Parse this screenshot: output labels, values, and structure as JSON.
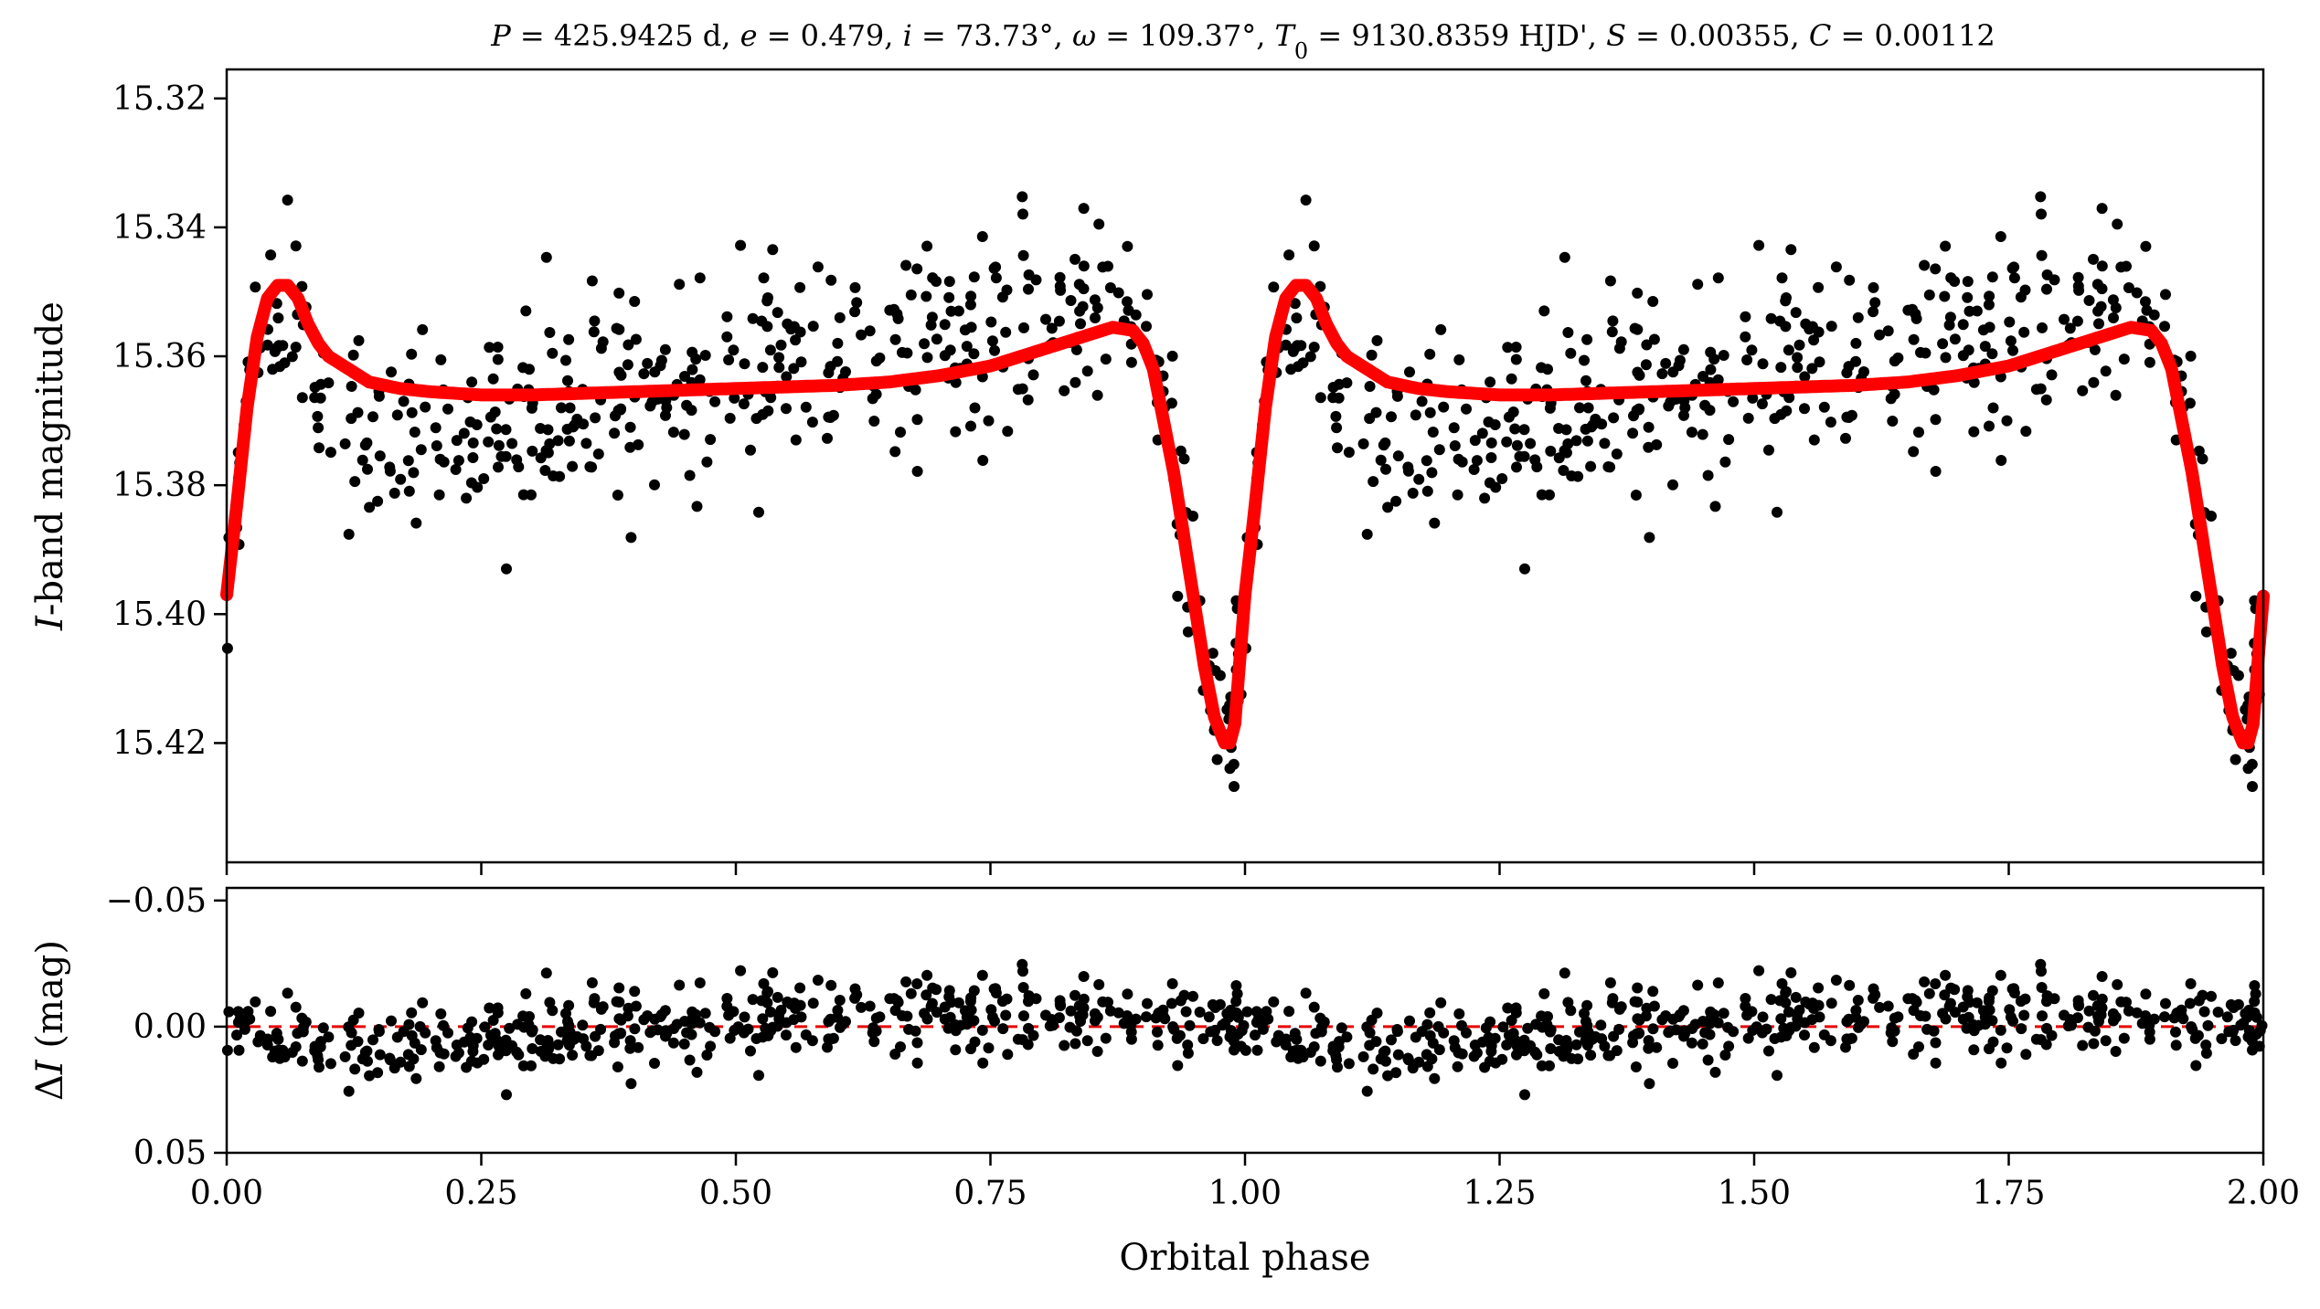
{
  "colors": {
    "points": "#000000",
    "model": "#ff0000",
    "zero_line": "#e60000",
    "axes": "#000000"
  },
  "chart_data": [
    {
      "type": "scatter",
      "panel": "light-curve",
      "title": "P = 425.9425 d, e = 0.479, i = 73.73°, ω = 109.37°, T0 = 9130.8359 HJD', S = 0.00355, C = 0.00112",
      "title_parts": [
        {
          "t": "P",
          "i": true
        },
        {
          "t": " = 425.9425 d, "
        },
        {
          "t": "e",
          "i": true
        },
        {
          "t": " = 0.479, "
        },
        {
          "t": "i",
          "i": true
        },
        {
          "t": " = 73.73°, "
        },
        {
          "t": "ω",
          "i": true
        },
        {
          "t": " = 109.37°, "
        },
        {
          "t": "T",
          "i": true
        },
        {
          "t": "0",
          "sub": true
        },
        {
          "t": " = 9130.8359 HJD', "
        },
        {
          "t": "S",
          "i": true
        },
        {
          "t": " = 0.00355, "
        },
        {
          "t": "C",
          "i": true
        },
        {
          "t": " = 0.00112"
        }
      ],
      "xlabel": "",
      "ylabel_parts": [
        {
          "t": "I",
          "i": true
        },
        {
          "t": "-band magnitude"
        }
      ],
      "xlim": [
        0,
        2
      ],
      "ylim": [
        15.4385,
        15.3155
      ],
      "y_inverted": true,
      "yticks": [
        15.32,
        15.34,
        15.36,
        15.38,
        15.4,
        15.42
      ],
      "ytick_labels": [
        "15.32",
        "15.34",
        "15.36",
        "15.38",
        "15.40",
        "15.42"
      ],
      "xticks": [
        0,
        0.25,
        0.5,
        0.75,
        1.0,
        1.25,
        1.5,
        1.75,
        2.0
      ],
      "legend": "none",
      "grid": false,
      "series": [
        {
          "kind": "model-line",
          "x": [
            0.0,
            0.01,
            0.02,
            0.03,
            0.04,
            0.05,
            0.06,
            0.07,
            0.08,
            0.09,
            0.1,
            0.12,
            0.14,
            0.17,
            0.2,
            0.25,
            0.3,
            0.4,
            0.5,
            0.6,
            0.65,
            0.7,
            0.75,
            0.8,
            0.84,
            0.87,
            0.89,
            0.9,
            0.91,
            0.92,
            0.93,
            0.94,
            0.95,
            0.96,
            0.97,
            0.98,
            0.985,
            0.99,
            1.0
          ],
          "y": [
            15.397,
            15.383,
            15.368,
            15.357,
            15.351,
            15.349,
            15.349,
            15.351,
            15.355,
            15.358,
            15.36,
            15.362,
            15.364,
            15.365,
            15.3655,
            15.366,
            15.366,
            15.3655,
            15.365,
            15.3645,
            15.364,
            15.363,
            15.3615,
            15.359,
            15.357,
            15.3555,
            15.356,
            15.358,
            15.362,
            15.37,
            15.378,
            15.388,
            15.398,
            15.408,
            15.416,
            15.42,
            15.42,
            15.417,
            15.397
          ]
        },
        {
          "kind": "observations",
          "period_repeat": 1,
          "jitter_sigma": 0.008,
          "n_per_cycle": 470
        }
      ]
    },
    {
      "type": "scatter",
      "panel": "residuals",
      "xlabel": "Orbital phase",
      "ylabel_parts": [
        {
          "t": "Δ"
        },
        {
          "t": "I",
          "i": true
        },
        {
          "t": " (mag)"
        }
      ],
      "xlim": [
        0,
        2
      ],
      "ylim": [
        0.05,
        -0.055
      ],
      "y_inverted": true,
      "yticks": [
        -0.05,
        0.0,
        0.05
      ],
      "ytick_labels": [
        "−0.05",
        "0.00",
        "0.05"
      ],
      "xticks": [
        0,
        0.25,
        0.5,
        0.75,
        1.0,
        1.25,
        1.5,
        1.75,
        2.0
      ],
      "xtick_labels": [
        "0.00",
        "0.25",
        "0.50",
        "0.75",
        "1.00",
        "1.25",
        "1.50",
        "1.75",
        "2.00"
      ],
      "zero_line": 0.0,
      "legend": "none",
      "grid": false
    }
  ]
}
